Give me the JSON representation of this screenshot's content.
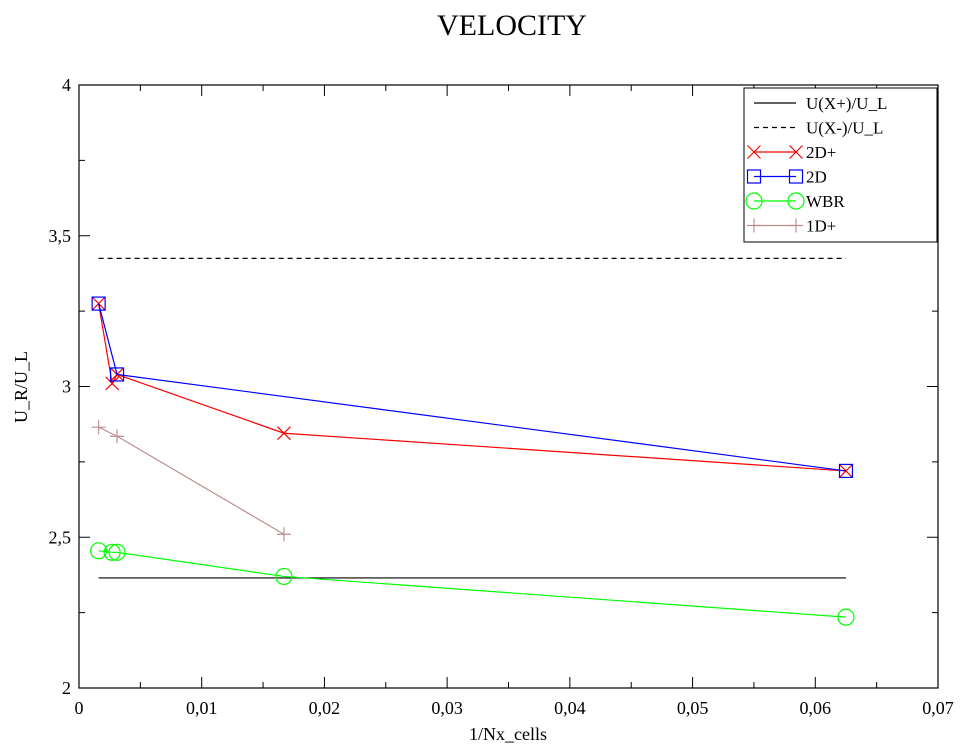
{
  "chart_data": {
    "type": "line",
    "title": "VELOCITY",
    "xlabel": "1/Nx_cells",
    "ylabel": "U_R/U_L",
    "xlim": [
      0,
      0.07
    ],
    "ylim": [
      2,
      4
    ],
    "x_ticks": [
      0,
      0.01,
      0.02,
      0.03,
      0.04,
      0.05,
      0.06,
      0.07
    ],
    "x_tick_labels": [
      "0",
      "0,01",
      "0,02",
      "0,03",
      "0,04",
      "0,05",
      "0,06",
      "0,07"
    ],
    "y_ticks": [
      2,
      2.5,
      3,
      3.5,
      4
    ],
    "y_tick_labels": [
      "2",
      "2,5",
      "3",
      "3,5",
      "4"
    ],
    "grid": false,
    "legend_position": "top-right",
    "series": [
      {
        "name": "U(X+)/U_L",
        "color": "#000000",
        "style": "solid",
        "marker": "none",
        "x": [
          0.0016,
          0.0625
        ],
        "y": [
          2.365,
          2.365
        ]
      },
      {
        "name": "U(X-)/U_L",
        "color": "#000000",
        "style": "dashed",
        "marker": "none",
        "x": [
          0.0016,
          0.0625
        ],
        "y": [
          3.425,
          3.425
        ]
      },
      {
        "name": "2D+",
        "color": "#ff0000",
        "style": "solid",
        "marker": "x",
        "x": [
          0.0016,
          0.0027,
          0.0031,
          0.0167,
          0.0625
        ],
        "y": [
          3.275,
          3.01,
          3.04,
          2.845,
          2.72
        ]
      },
      {
        "name": "2D",
        "color": "#0000ff",
        "style": "solid",
        "marker": "square",
        "x": [
          0.0016,
          0.0031,
          0.0625
        ],
        "y": [
          3.275,
          3.04,
          2.72
        ]
      },
      {
        "name": "WBR",
        "color": "#00ff00",
        "style": "solid",
        "marker": "circle",
        "x": [
          0.0016,
          0.0027,
          0.0031,
          0.0167,
          0.0625
        ],
        "y": [
          2.455,
          2.45,
          2.45,
          2.37,
          2.235
        ]
      },
      {
        "name": "1D+",
        "color": "#bc8f8f",
        "style": "solid",
        "marker": "plus",
        "x": [
          0.0016,
          0.0031,
          0.0167
        ],
        "y": [
          2.865,
          2.835,
          2.51
        ]
      }
    ]
  }
}
